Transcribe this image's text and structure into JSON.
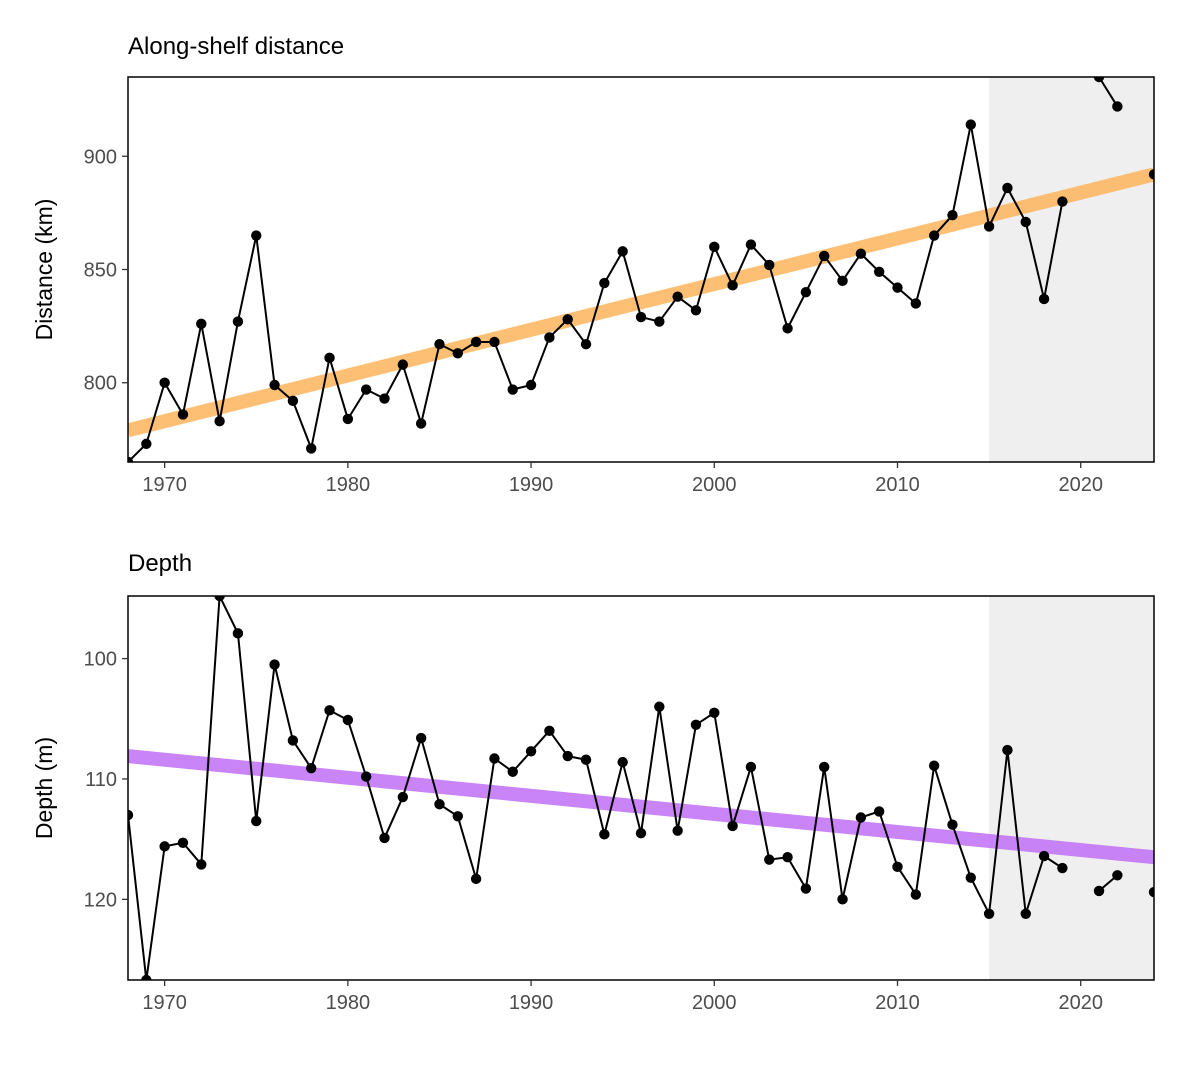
{
  "chart_data": [
    {
      "type": "line",
      "title": "Along-shelf distance",
      "ylabel": "Distance (km)",
      "xlabel": "",
      "xlim": [
        1968,
        2024
      ],
      "ylim": [
        765,
        935
      ],
      "reverse_y": false,
      "x_ticks": [
        1970,
        1980,
        1990,
        2000,
        2010,
        2020
      ],
      "y_ticks": [
        800,
        850,
        900
      ],
      "shaded_region": {
        "from": 2015,
        "to": 2024,
        "color": "#efefef"
      },
      "trend": {
        "from": [
          1968,
          779
        ],
        "to": [
          2024,
          892
        ],
        "color": "#fdb45c"
      },
      "series": [
        {
          "x": [
            1968,
            1969,
            1970,
            1971,
            1972,
            1973,
            1974,
            1975,
            1976,
            1977,
            1978,
            1979,
            1980,
            1981,
            1982,
            1983,
            1984,
            1985,
            1986,
            1987,
            1988,
            1989,
            1990,
            1991,
            1992,
            1993,
            1994,
            1995,
            1996,
            1997,
            1998,
            1999,
            2000,
            2001,
            2002,
            2003,
            2004,
            2005,
            2006,
            2007,
            2008,
            2009,
            2010,
            2011,
            2012,
            2013,
            2014,
            2015,
            2016,
            2017,
            2018,
            2019,
            null,
            2021,
            2022,
            null,
            2024
          ],
          "values": [
            765,
            773,
            800,
            786,
            826,
            783,
            827,
            865,
            799,
            792,
            771,
            811,
            784,
            797,
            793,
            808,
            782,
            817,
            813,
            818,
            818,
            797,
            799,
            820,
            828,
            817,
            844,
            858,
            829,
            827,
            838,
            832,
            860,
            843,
            861,
            852,
            824,
            840,
            856,
            845,
            857,
            849,
            842,
            835,
            865,
            874,
            914,
            869,
            886,
            871,
            837,
            880,
            null,
            935,
            922,
            null,
            892
          ]
        }
      ]
    },
    {
      "type": "line",
      "title": "Depth",
      "ylabel": "Depth (m)",
      "xlabel": "",
      "xlim": [
        1968,
        2024
      ],
      "ylim": [
        126.7,
        94.8
      ],
      "reverse_y": true,
      "x_ticks": [
        1970,
        1980,
        1990,
        2000,
        2010,
        2020
      ],
      "y_ticks": [
        100,
        110,
        120
      ],
      "shaded_region": {
        "from": 2015,
        "to": 2024,
        "color": "#efefef"
      },
      "trend": {
        "from": [
          1968,
          108.1
        ],
        "to": [
          2024,
          116.5
        ],
        "color": "#bf6ef6"
      },
      "series": [
        {
          "x": [
            1968,
            1969,
            1970,
            1971,
            1972,
            1973,
            1974,
            1975,
            1976,
            1977,
            1978,
            1979,
            1980,
            1981,
            1982,
            1983,
            1984,
            1985,
            1986,
            1987,
            1988,
            1989,
            1990,
            1991,
            1992,
            1993,
            1994,
            1995,
            1996,
            1997,
            1998,
            1999,
            2000,
            2001,
            2002,
            2003,
            2004,
            2005,
            2006,
            2007,
            2008,
            2009,
            2010,
            2011,
            2012,
            2013,
            2014,
            2015,
            2016,
            2017,
            2018,
            2019,
            null,
            2021,
            2022,
            null,
            2024
          ],
          "values": [
            113,
            126.7,
            115.6,
            115.3,
            117.1,
            94.8,
            97.9,
            113.5,
            100.5,
            106.8,
            109.1,
            104.3,
            105.1,
            109.8,
            114.9,
            111.5,
            106.6,
            112.1,
            113.1,
            118.3,
            108.3,
            109.4,
            107.7,
            106,
            108.1,
            108.4,
            114.6,
            108.6,
            114.5,
            104,
            114.3,
            105.5,
            104.5,
            113.9,
            109,
            116.7,
            116.5,
            119.1,
            109,
            120,
            113.2,
            112.7,
            117.3,
            119.6,
            108.9,
            113.8,
            118.2,
            121.2,
            107.6,
            121.2,
            116.4,
            117.4,
            null,
            119.3,
            118,
            null,
            119.4
          ]
        }
      ]
    }
  ]
}
